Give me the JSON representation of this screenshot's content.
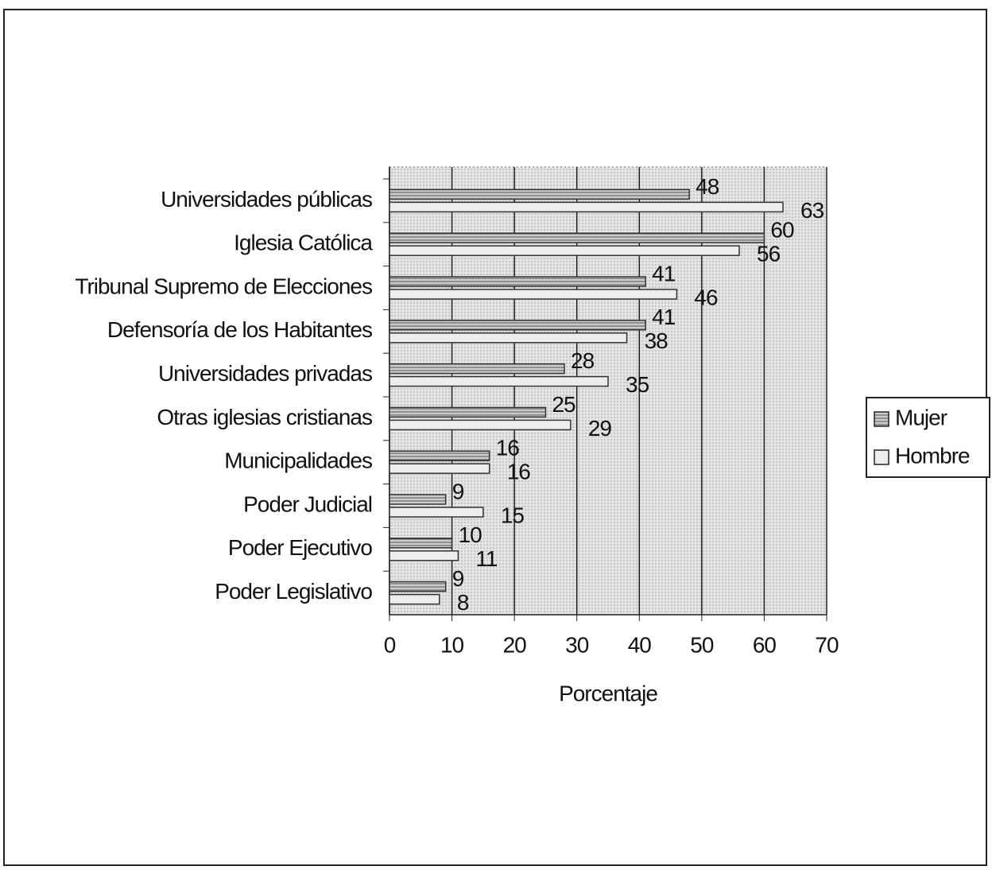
{
  "chart_data": {
    "type": "bar",
    "orientation": "horizontal",
    "categories": [
      "Universidades públicas",
      "Iglesia Católica",
      "Tribunal Supremo de Elecciones",
      "Defensoría de los Habitantes",
      "Universidades privadas",
      "Otras iglesias cristianas",
      "Municipalidades",
      "Poder Judicial",
      "Poder Ejecutivo",
      "Poder Legislativo"
    ],
    "series": [
      {
        "name": "Mujer",
        "color": "#b8b8b8",
        "values": [
          48,
          60,
          41,
          41,
          28,
          25,
          16,
          9,
          10,
          9
        ]
      },
      {
        "name": "Hombre",
        "color": "#ededed",
        "values": [
          63,
          56,
          46,
          38,
          35,
          29,
          16,
          15,
          11,
          8
        ]
      }
    ],
    "x_label": "Porcentaje",
    "xlim": [
      0,
      70
    ],
    "xticks": [
      0,
      10,
      20,
      30,
      40,
      50,
      60,
      70
    ],
    "grid": true,
    "legend": "right"
  }
}
